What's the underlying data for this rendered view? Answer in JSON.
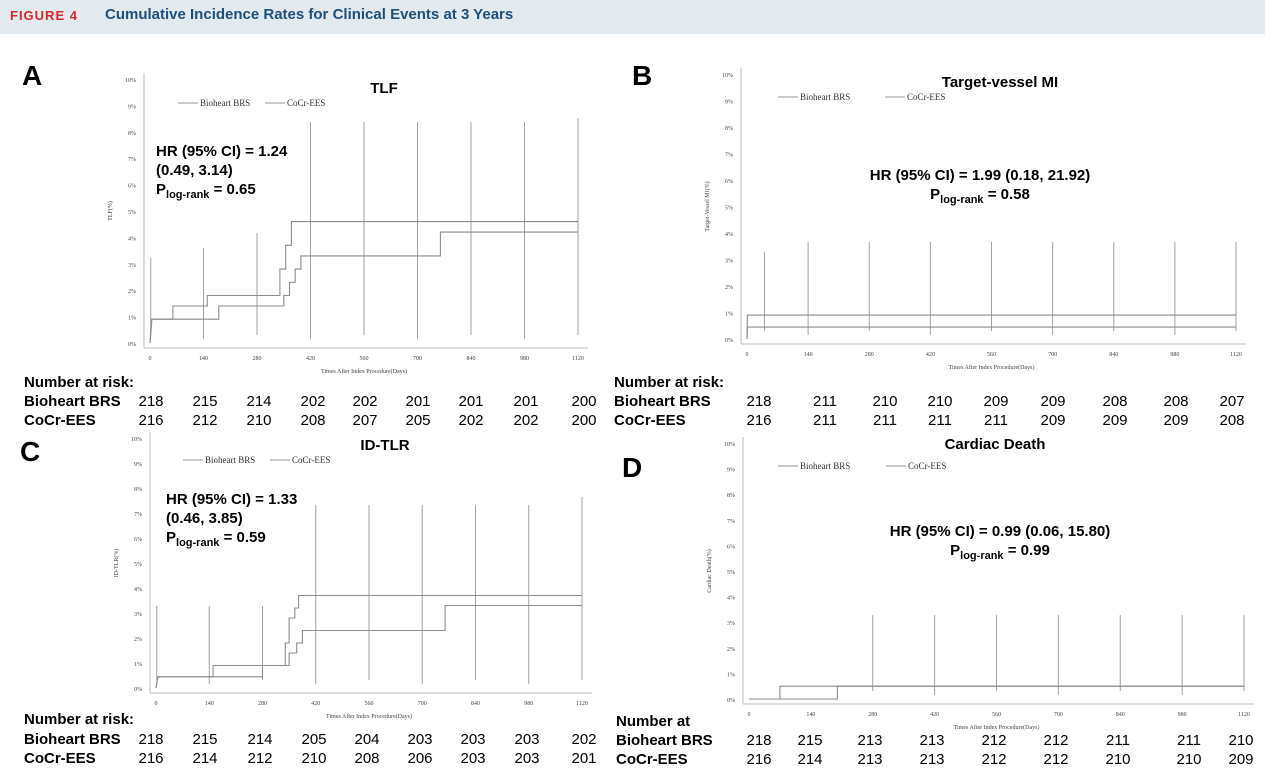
{
  "figure_label": "FIGURE 4",
  "figure_title": "Cumulative Incidence Rates for Clinical Events at 3 Years",
  "panels": {
    "A": {
      "letter": "A",
      "hr_lines": [
        "HR (95% CI) = 1.24",
        "(0.49, 3.14)"
      ],
      "p_main": "P",
      "p_sub": "log-rank",
      "p_val": " = 0.65",
      "risk_header": "Number at risk:",
      "rows": [
        {
          "name": "Bioheart BRS",
          "values": [
            "218",
            "215",
            "214",
            "202",
            "202",
            "201",
            "201",
            "201",
            "200"
          ]
        },
        {
          "name": "CoCr-EES",
          "values": [
            "216",
            "212",
            "210",
            "208",
            "207",
            "205",
            "202",
            "202",
            "200"
          ]
        }
      ]
    },
    "B": {
      "letter": "B",
      "hr_lines": [
        "HR (95% CI) = 1.99 (0.18, 21.92)"
      ],
      "p_main": "P",
      "p_sub": "log-rank",
      "p_val": " = 0.58",
      "risk_header": "Number at risk:",
      "rows": [
        {
          "name": "Bioheart BRS",
          "values": [
            "218",
            "211",
            "210",
            "210",
            "209",
            "209",
            "208",
            "208",
            "207"
          ]
        },
        {
          "name": "CoCr-EES",
          "values": [
            "216",
            "211",
            "211",
            "211",
            "211",
            "209",
            "209",
            "209",
            "208"
          ]
        }
      ]
    },
    "C": {
      "letter": "C",
      "hr_lines": [
        "HR (95% CI) = 1.33",
        "(0.46, 3.85)"
      ],
      "p_main": "P",
      "p_sub": "log-rank",
      "p_val": " = 0.59",
      "risk_header": "Number at risk:",
      "rows": [
        {
          "name": "Bioheart BRS",
          "values": [
            "218",
            "215",
            "214",
            "205",
            "204",
            "203",
            "203",
            "203",
            "202"
          ]
        },
        {
          "name": "CoCr-EES",
          "values": [
            "216",
            "214",
            "212",
            "210",
            "208",
            "206",
            "203",
            "203",
            "201"
          ]
        }
      ]
    },
    "D": {
      "letter": "D",
      "hr_lines": [
        "HR (95% CI) = 0.99 (0.06, 15.80)"
      ],
      "p_main": "P",
      "p_sub": "log-rank",
      "p_val": " = 0.99",
      "risk_header": "Number at",
      "rows": [
        {
          "name": "Bioheart BRS",
          "values": [
            "218",
            "215",
            "213",
            "213",
            "212",
            "212",
            "211",
            "211",
            "210"
          ]
        },
        {
          "name": "CoCr-EES",
          "values": [
            "216",
            "214",
            "213",
            "213",
            "212",
            "212",
            "210",
            "210",
            "209"
          ]
        }
      ]
    }
  },
  "chart_data": [
    {
      "type": "line",
      "title": "TLF",
      "xlabel": "Times After Index Procedure(Days)",
      "ylabel": "TLF(%)",
      "xlim": [
        0,
        1120
      ],
      "ylim": [
        0,
        10
      ],
      "x_ticks": [
        0,
        140,
        280,
        420,
        560,
        700,
        840,
        980,
        1120
      ],
      "y_ticks": [
        "0%",
        "1%",
        "2%",
        "3%",
        "4%",
        "5%",
        "6%",
        "7%",
        "8%",
        "9%",
        "10%"
      ],
      "grid": false,
      "legend": "top",
      "series": [
        {
          "name": "Bioheart BRS",
          "points": [
            [
              0,
              0
            ],
            [
              2,
              0.5
            ],
            [
              4,
              0.9
            ],
            [
              60,
              0.9
            ],
            [
              60,
              1.4
            ],
            [
              150,
              1.4
            ],
            [
              150,
              1.8
            ],
            [
              340,
              1.8
            ],
            [
              340,
              2.8
            ],
            [
              355,
              2.8
            ],
            [
              355,
              3.7
            ],
            [
              370,
              3.7
            ],
            [
              370,
              4.6
            ],
            [
              1120,
              4.6
            ]
          ]
        },
        {
          "name": "CoCr-EES",
          "points": [
            [
              0,
              0
            ],
            [
              3,
              0.5
            ],
            [
              5,
              0.9
            ],
            [
              180,
              0.9
            ],
            [
              180,
              1.4
            ],
            [
              350,
              1.4
            ],
            [
              350,
              1.8
            ],
            [
              365,
              1.8
            ],
            [
              365,
              2.3
            ],
            [
              380,
              2.3
            ],
            [
              380,
              2.8
            ],
            [
              395,
              2.8
            ],
            [
              395,
              3.3
            ],
            [
              760,
              3.3
            ],
            [
              760,
              4.2
            ],
            [
              1120,
              4.2
            ]
          ]
        }
      ],
      "censor_x": [
        2,
        140,
        280,
        420,
        560,
        700,
        840,
        980,
        1120
      ]
    },
    {
      "type": "line",
      "title": "Target-vessel MI",
      "xlabel": "Times After Index Procedure(Days)",
      "ylabel": "Target-Vessel MI(%)",
      "xlim": [
        0,
        1120
      ],
      "ylim": [
        0,
        10
      ],
      "x_ticks": [
        0,
        140,
        280,
        420,
        560,
        700,
        840,
        980,
        1120
      ],
      "y_ticks": [
        "0%",
        "1%",
        "2%",
        "3%",
        "4%",
        "5%",
        "6%",
        "7%",
        "8%",
        "9%",
        "10%"
      ],
      "grid": false,
      "legend": "top",
      "series": [
        {
          "name": "Bioheart BRS",
          "points": [
            [
              0,
              0
            ],
            [
              1,
              0.9
            ],
            [
              1120,
              0.9
            ]
          ]
        },
        {
          "name": "CoCr-EES",
          "points": [
            [
              0,
              0
            ],
            [
              1,
              0.45
            ],
            [
              1120,
              0.45
            ]
          ]
        }
      ],
      "censor_x": [
        40,
        140,
        280,
        420,
        560,
        700,
        840,
        980,
        1120
      ]
    },
    {
      "type": "line",
      "title": "ID-TLR",
      "xlabel": "Times After Index Procedure(Days)",
      "ylabel": "ID-TLR(%)",
      "xlim": [
        0,
        1120
      ],
      "ylim": [
        0,
        10
      ],
      "x_ticks": [
        0,
        140,
        280,
        420,
        560,
        700,
        840,
        980,
        1120
      ],
      "y_ticks": [
        "0%",
        "1%",
        "2%",
        "3%",
        "4%",
        "5%",
        "6%",
        "7%",
        "8%",
        "9%",
        "10%"
      ],
      "grid": false,
      "legend": "top",
      "series": [
        {
          "name": "Bioheart BRS",
          "points": [
            [
              0,
              0
            ],
            [
              5,
              0.45
            ],
            [
              150,
              0.45
            ],
            [
              150,
              0.9
            ],
            [
              340,
              0.9
            ],
            [
              340,
              1.8
            ],
            [
              350,
              1.8
            ],
            [
              350,
              2.8
            ],
            [
              365,
              2.8
            ],
            [
              365,
              3.2
            ],
            [
              375,
              3.2
            ],
            [
              375,
              3.7
            ],
            [
              1120,
              3.7
            ]
          ]
        },
        {
          "name": "CoCr-EES",
          "points": [
            [
              0,
              0
            ],
            [
              5,
              0.45
            ],
            [
              280,
              0.45
            ],
            [
              280,
              0.9
            ],
            [
              350,
              0.9
            ],
            [
              350,
              1.4
            ],
            [
              370,
              1.4
            ],
            [
              370,
              1.8
            ],
            [
              385,
              1.8
            ],
            [
              385,
              2.3
            ],
            [
              760,
              2.3
            ],
            [
              760,
              3.3
            ],
            [
              1120,
              3.3
            ]
          ]
        }
      ],
      "censor_x": [
        2,
        140,
        280,
        420,
        560,
        700,
        840,
        980,
        1120
      ]
    },
    {
      "type": "line",
      "title": "Cardiac Death",
      "xlabel": "Times After Index Procedure(Days)",
      "ylabel": "Cardiac Death(%)",
      "xlim": [
        0,
        1120
      ],
      "ylim": [
        0,
        10
      ],
      "x_ticks": [
        0,
        140,
        280,
        420,
        560,
        700,
        840,
        980,
        1120
      ],
      "y_ticks": [
        "0%",
        "1%",
        "2%",
        "3%",
        "4%",
        "5%",
        "6%",
        "7%",
        "8%",
        "9%",
        "10%"
      ],
      "grid": false,
      "legend": "top",
      "series": [
        {
          "name": "Bioheart BRS",
          "points": [
            [
              0,
              0
            ],
            [
              70,
              0
            ],
            [
              70,
              0.5
            ],
            [
              1120,
              0.5
            ]
          ]
        },
        {
          "name": "CoCr-EES",
          "points": [
            [
              0,
              0
            ],
            [
              200,
              0
            ],
            [
              200,
              0.5
            ],
            [
              1120,
              0.5
            ]
          ]
        }
      ],
      "censor_x": [
        280,
        420,
        560,
        700,
        840,
        980,
        1120
      ]
    }
  ]
}
